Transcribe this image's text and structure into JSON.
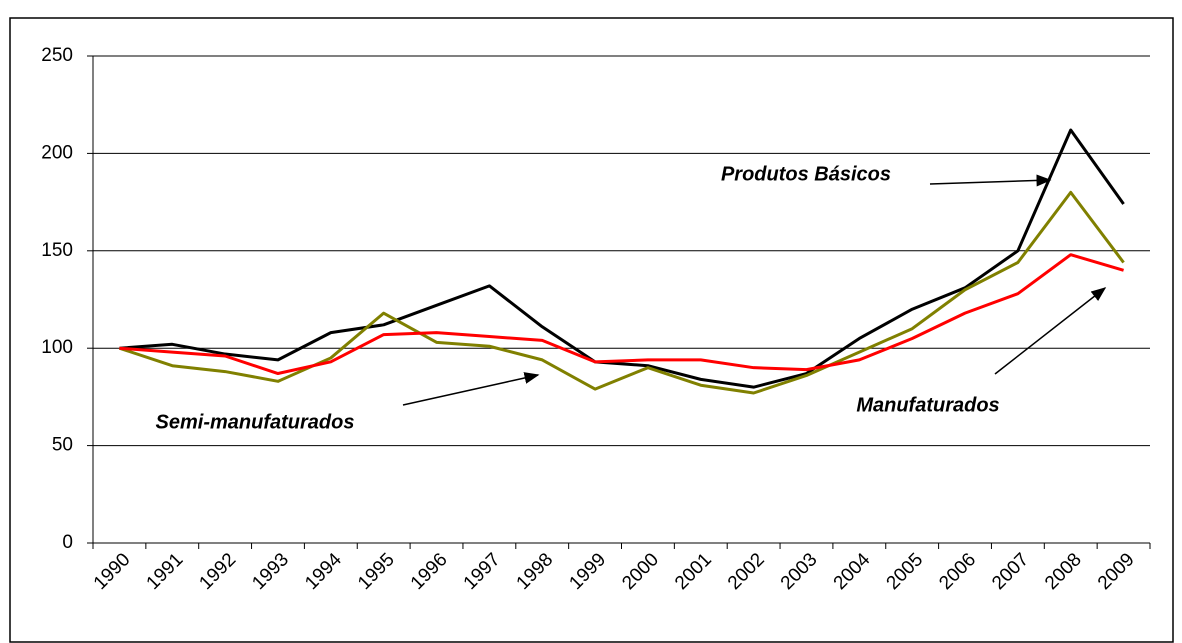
{
  "chart_data": {
    "type": "line",
    "categories": [
      "1990",
      "1991",
      "1992",
      "1993",
      "1994",
      "1995",
      "1996",
      "1997",
      "1998",
      "1999",
      "2000",
      "2001",
      "2002",
      "2003",
      "2004",
      "2005",
      "2006",
      "2007",
      "2008",
      "2009"
    ],
    "series": [
      {
        "name": "Produtos Básicos",
        "color": "#000000",
        "values": [
          100,
          102,
          97,
          94,
          108,
          112,
          122,
          132,
          111,
          93,
          91,
          84,
          80,
          87,
          105,
          120,
          131,
          150,
          212,
          174
        ]
      },
      {
        "name": "Semi-manufaturados",
        "color": "#808000",
        "values": [
          100,
          91,
          88,
          83,
          95,
          118,
          103,
          101,
          94,
          79,
          90,
          81,
          77,
          86,
          98,
          110,
          130,
          144,
          180,
          144
        ]
      },
      {
        "name": "Manufaturados",
        "color": "#ff0000",
        "values": [
          100,
          98,
          96,
          87,
          93,
          107,
          108,
          106,
          104,
          93,
          94,
          94,
          90,
          89,
          94,
          105,
          118,
          128,
          148,
          140
        ]
      }
    ],
    "ylim": [
      0,
      250
    ],
    "yticks": [
      0,
      50,
      100,
      150,
      200,
      250
    ],
    "grid": true
  }
}
